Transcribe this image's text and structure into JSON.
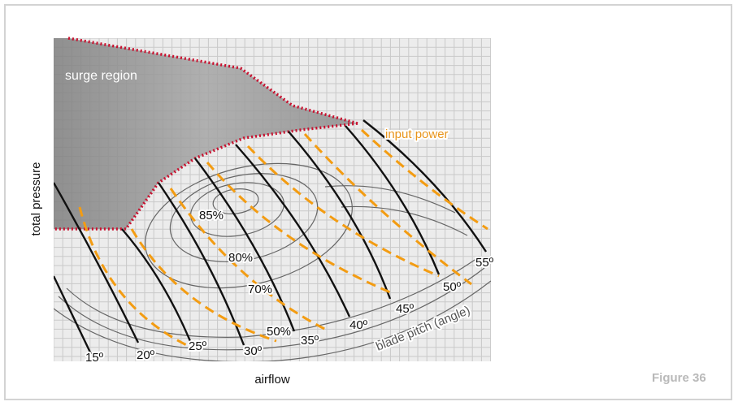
{
  "figure_label": "Figure 36",
  "axis": {
    "y_title": "total pressure",
    "x_title": "airflow"
  },
  "labels": {
    "surge_region": "surge region",
    "input_power": "input power",
    "blade_pitch": "blade pitch (angle)"
  },
  "efficiency_labels": [
    "85%",
    "80%",
    "70%",
    "50%"
  ],
  "pitch_angles": [
    "15º",
    "20º",
    "25º",
    "30º",
    "35º",
    "40º",
    "45º",
    "50º",
    "55º"
  ],
  "colors": {
    "surge_fill": "#9e9e9e",
    "surge_border": "#c8102e",
    "power_curves": "#f39c12",
    "pitch_curves": "#111111",
    "efficiency_contours": "#666666",
    "grid_lines": "#c9c9c9"
  }
}
